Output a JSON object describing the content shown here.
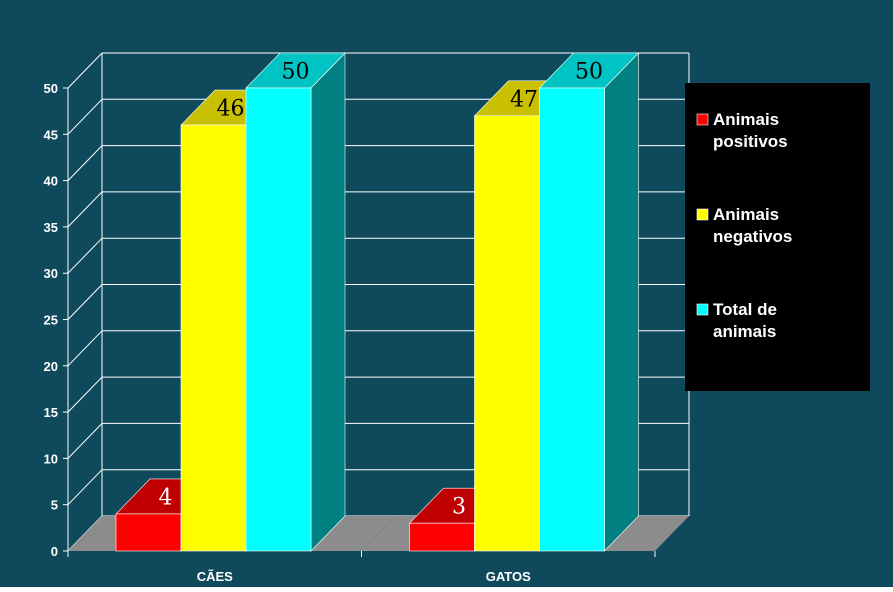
{
  "chart_data": {
    "type": "bar",
    "categories": [
      "CÃES",
      "GATOS"
    ],
    "ylim": [
      0,
      50
    ],
    "yticks": [
      0,
      5,
      10,
      15,
      20,
      25,
      30,
      35,
      40,
      45,
      50
    ],
    "grid": true,
    "legend_position": "right",
    "series": [
      {
        "name": "Animais positivos",
        "values": [
          4,
          3
        ],
        "data_labels": [
          "4",
          "3"
        ]
      },
      {
        "name": "Animais negativos",
        "values": [
          46,
          47
        ],
        "data_labels": [
          "46",
          "47"
        ]
      },
      {
        "name": "Total de animais",
        "values": [
          50,
          50
        ],
        "data_labels": [
          "50",
          "50"
        ]
      }
    ],
    "legend_lines": [
      [
        "Animais",
        "positivos"
      ],
      [
        "Animais",
        "negativos"
      ],
      [
        "Total de",
        "animais"
      ]
    ],
    "colors": {
      "background": "#0f4a5c",
      "floor": "#8c8c8c",
      "legend_background": "#000000",
      "series_front": [
        "#ff0000",
        "#ffff00",
        "#00ffff"
      ],
      "series_top": [
        "#c00000",
        "#c8c000",
        "#00c4c4"
      ],
      "series_side": [
        "#a00000",
        "#a09800",
        "#008080"
      ]
    }
  }
}
